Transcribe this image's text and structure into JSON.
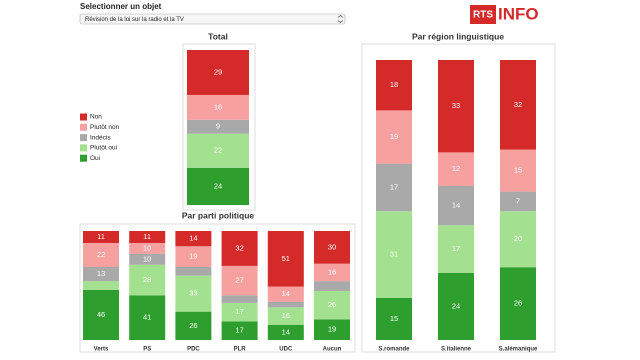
{
  "header": {
    "label": "Selectionner un objet",
    "select": "Révision de la loi sur la radio et la TV",
    "logo_left": "RTS",
    "logo_right": "INFO"
  },
  "chart_data": [
    {
      "type": "bar",
      "stacked": true,
      "title": "Total",
      "categories": [
        null
      ],
      "ylim": [
        0,
        100
      ],
      "series": [
        {
          "name": "Non",
          "color": "#d42a2a",
          "values": [
            29
          ]
        },
        {
          "name": "Plutôt non",
          "color": "#f7a0a0",
          "values": [
            16
          ]
        },
        {
          "name": "Indécis",
          "color": "#a9a9a9",
          "values": [
            9
          ]
        },
        {
          "name": "Plutôt oui",
          "color": "#a3e08f",
          "values": [
            22
          ]
        },
        {
          "name": "Oui",
          "color": "#2e9e2e",
          "values": [
            24
          ]
        }
      ]
    },
    {
      "type": "bar",
      "stacked": true,
      "title": "Par parti politique",
      "categories": [
        "Verts",
        "PS",
        "PDC",
        "PLR",
        "UDC",
        "Aucun"
      ],
      "ylim": [
        0,
        100
      ],
      "series": [
        {
          "name": "Non",
          "color": "#d42a2a",
          "values": [
            11,
            11,
            14,
            32,
            51,
            30
          ]
        },
        {
          "name": "Plutôt non",
          "color": "#f7a0a0",
          "values": [
            22,
            10,
            19,
            27,
            14,
            16
          ]
        },
        {
          "name": "Indécis",
          "color": "#a9a9a9",
          "values": [
            13,
            10,
            8,
            7,
            5,
            9
          ]
        },
        {
          "name": "Plutôt oui",
          "color": "#a3e08f",
          "values": [
            8,
            28,
            33,
            17,
            16,
            26
          ]
        },
        {
          "name": "Oui",
          "color": "#2e9e2e",
          "values": [
            46,
            41,
            26,
            17,
            14,
            19
          ]
        }
      ]
    },
    {
      "type": "bar",
      "stacked": true,
      "title": "Par région linguistique",
      "categories": [
        "S.romande",
        "S.italienne",
        "S.alémanique"
      ],
      "ylim": [
        0,
        100
      ],
      "series": [
        {
          "name": "Non",
          "color": "#d42a2a",
          "values": [
            18,
            33,
            32
          ]
        },
        {
          "name": "Plutôt non",
          "color": "#f7a0a0",
          "values": [
            19,
            12,
            15
          ]
        },
        {
          "name": "Indécis",
          "color": "#a9a9a9",
          "values": [
            17,
            14,
            7
          ]
        },
        {
          "name": "Plutôt oui",
          "color": "#a3e08f",
          "values": [
            31,
            17,
            20
          ]
        },
        {
          "name": "Oui",
          "color": "#2e9e2e",
          "values": [
            15,
            24,
            26
          ]
        }
      ]
    }
  ]
}
